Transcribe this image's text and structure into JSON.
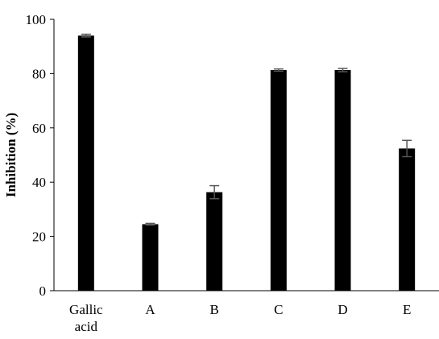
{
  "chart_data": {
    "type": "bar",
    "categories": [
      [
        "Gallic",
        "acid"
      ],
      [
        "A"
      ],
      [
        "B"
      ],
      [
        "C"
      ],
      [
        "D"
      ],
      [
        "E"
      ]
    ],
    "values": [
      94.0,
      24.5,
      36.3,
      81.3,
      81.3,
      52.4
    ],
    "errors": [
      0.5,
      0.3,
      2.4,
      0.4,
      0.6,
      3.0
    ],
    "ylabel": "Inhibition (%)",
    "ylim": [
      0,
      100
    ],
    "yticks": [
      0,
      20,
      40,
      60,
      80,
      100
    ],
    "grid": false,
    "legend": "none",
    "bar_color": "#000000",
    "error_color": "#555555",
    "axis_color": "#000000"
  }
}
